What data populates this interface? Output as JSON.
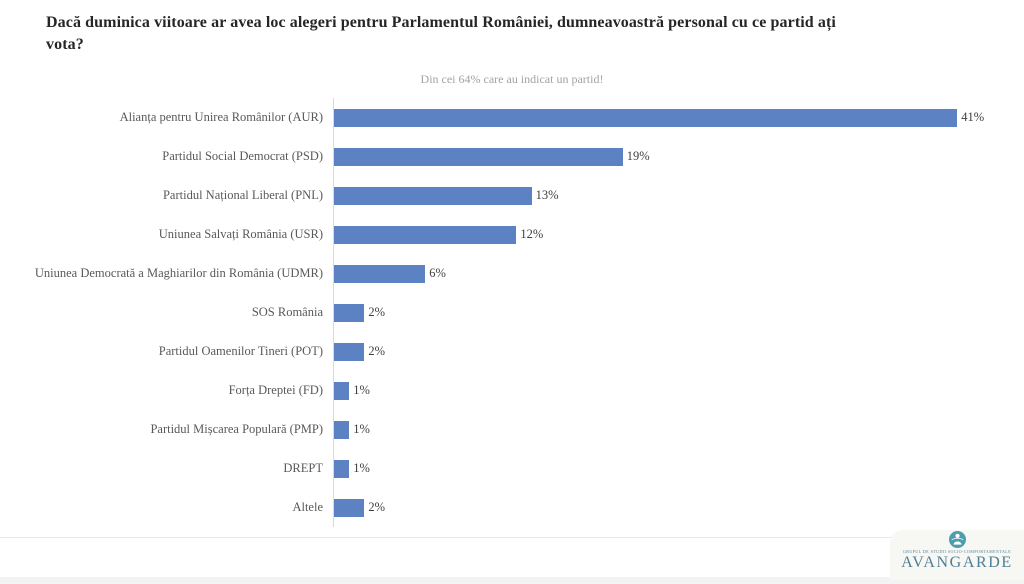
{
  "title": "Dacă duminica viitoare ar avea loc alegeri pentru Parlamentul României, dumneavoastră personal cu ce partid ați\nvota?",
  "subtitle": "Din cei 64% care au indicat un partid!",
  "chart_data": {
    "type": "bar",
    "orientation": "horizontal",
    "title": "Dacă duminica viitoare ar avea loc alegeri pentru Parlamentul României, dumneavoastră personal cu ce partid ați vota?",
    "subtitle": "Din cei 64% care au indicat un partid!",
    "categories": [
      "Alianța pentru Unirea Românilor (AUR)",
      "Partidul Social Democrat (PSD)",
      "Partidul Național Liberal (PNL)",
      "Uniunea Salvați România (USR)",
      "Uniunea Democrată a Maghiarilor din România (UDMR)",
      "SOS România",
      "Partidul Oamenilor Tineri (POT)",
      "Forța Dreptei (FD)",
      "Partidul Mișcarea Populară (PMP)",
      "DREPT",
      "Altele"
    ],
    "values": [
      41,
      19,
      13,
      12,
      6,
      2,
      2,
      1,
      1,
      1,
      2
    ],
    "data_labels": [
      "41%",
      "19%",
      "13%",
      "12%",
      "6%",
      "2%",
      "2%",
      "1%",
      "1%",
      "1%",
      "2%"
    ],
    "unit": "%",
    "xlim": [
      0,
      44
    ],
    "grid": false,
    "legend": null,
    "bar_color": "#5c82c3",
    "axis_line_color": "#d9d9d9"
  },
  "footer": {
    "tagline": "GRUPUL DE STUDII SOCIO-COMPORTAMENTALE",
    "wordmark": "AVANGARDE",
    "wordmark_color": "#4f7f95",
    "emblem_color": "#4e9dae"
  }
}
